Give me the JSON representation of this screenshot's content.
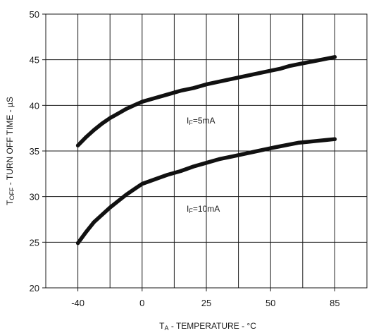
{
  "chart_data": {
    "type": "line",
    "xlabel": {
      "main": "T",
      "sub": "A",
      "rest": " - TEMPERATURE - °C"
    },
    "ylabel": {
      "main": "T",
      "sub": "OFF",
      "rest": " - TURN OFF TIME - µS"
    },
    "x_tick_labels": [
      "-40",
      "0",
      "25",
      "50",
      "85"
    ],
    "y_tick_labels": [
      "20",
      "25",
      "30",
      "35",
      "40",
      "45",
      "50"
    ],
    "ylim": [
      20,
      50
    ],
    "grid": true,
    "series": [
      {
        "name": "IF=5mA",
        "label": {
          "main": "I",
          "sub": "F",
          "rest": "=5mA"
        },
        "x": [
          -40,
          -35,
          -30,
          -25,
          -20,
          -15,
          -10,
          -5,
          0,
          5,
          10,
          15,
          20,
          25,
          30,
          35,
          40,
          45,
          50,
          55,
          60,
          65,
          70,
          75,
          80,
          85
        ],
        "values": [
          35.6,
          36.5,
          37.3,
          38.0,
          38.6,
          39.1,
          39.6,
          40.0,
          40.4,
          40.8,
          41.2,
          41.6,
          41.9,
          42.3,
          42.6,
          42.9,
          43.2,
          43.5,
          43.8,
          44.0,
          44.3,
          44.5,
          44.7,
          44.9,
          45.1,
          45.3
        ]
      },
      {
        "name": "IF=10mA",
        "label": {
          "main": "I",
          "sub": "F",
          "rest": "=10mA"
        },
        "x": [
          -40,
          -35,
          -30,
          -25,
          -20,
          -15,
          -10,
          -5,
          0,
          5,
          10,
          15,
          20,
          25,
          30,
          35,
          40,
          45,
          50,
          55,
          60,
          65,
          70,
          75,
          80,
          85
        ],
        "values": [
          24.9,
          26.1,
          27.2,
          28.0,
          28.8,
          29.5,
          30.2,
          30.8,
          31.4,
          31.9,
          32.4,
          32.8,
          33.3,
          33.7,
          34.1,
          34.4,
          34.7,
          35.0,
          35.3,
          35.5,
          35.7,
          35.9,
          36.0,
          36.1,
          36.2,
          36.3
        ]
      }
    ]
  }
}
